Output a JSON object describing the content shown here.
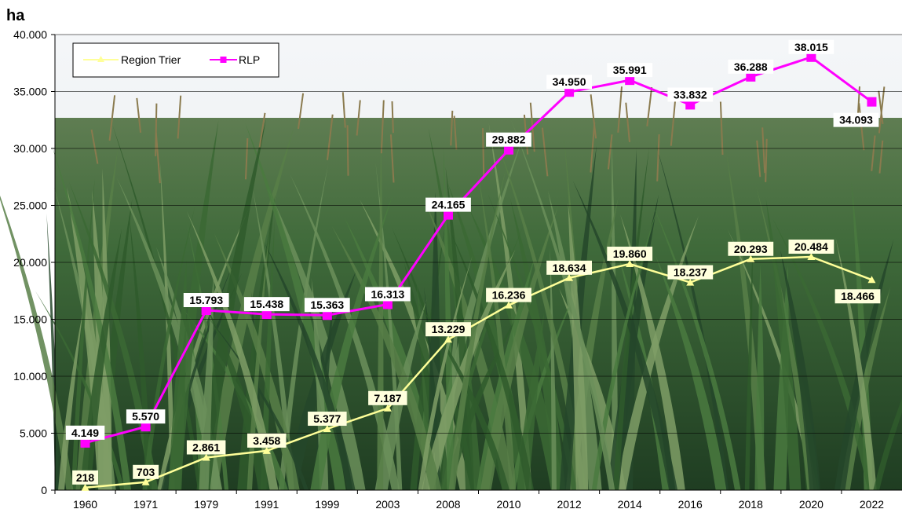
{
  "chart_data": {
    "type": "line",
    "ylabel": "ha",
    "ylim": [
      0,
      40000
    ],
    "yticks": [
      0,
      5000,
      10000,
      15000,
      20000,
      25000,
      30000,
      35000,
      40000
    ],
    "ytick_labels": [
      "0",
      "5.000",
      "10.000",
      "15.000",
      "20.000",
      "25.000",
      "30.000",
      "35.000",
      "40.000"
    ],
    "categories": [
      "1960",
      "1971",
      "1979",
      "1991",
      "1999",
      "2003",
      "2008",
      "2010",
      "2012",
      "2014",
      "2016",
      "2018",
      "2020",
      "2022"
    ],
    "legend_position": "top-left",
    "grid": "horizontal",
    "background": "photo of a maize (corn) field",
    "series": [
      {
        "name": "Region Trier",
        "color": "#ffff99",
        "marker": "triangle",
        "values": [
          218,
          703,
          2861,
          3458,
          5377,
          7187,
          13229,
          16236,
          18634,
          19860,
          18237,
          20293,
          20484,
          18466
        ],
        "labels": [
          "218",
          "703",
          "2.861",
          "3.458",
          "5.377",
          "7.187",
          "13.229",
          "16.236",
          "18.634",
          "19.860",
          "18.237",
          "20.293",
          "20.484",
          "18.466"
        ]
      },
      {
        "name": "RLP",
        "color": "#ff00ff",
        "marker": "square",
        "values": [
          4149,
          5570,
          15793,
          15438,
          15363,
          16313,
          24165,
          29882,
          34950,
          35991,
          33832,
          36288,
          38015,
          34093
        ],
        "labels": [
          "4.149",
          "5.570",
          "15.793",
          "15.438",
          "15.363",
          "16.313",
          "24.165",
          "29.882",
          "34.950",
          "35.991",
          "33.832",
          "36.288",
          "38.015",
          "34.093"
        ]
      }
    ]
  }
}
